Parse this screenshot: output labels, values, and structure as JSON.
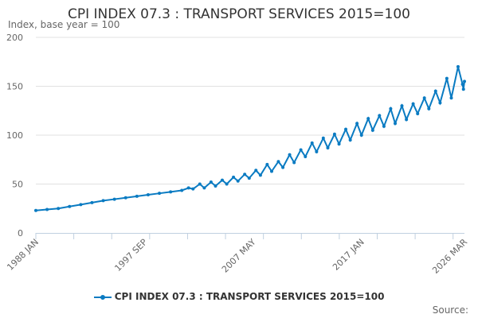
{
  "chart_data": {
    "type": "line",
    "title": "CPI INDEX 07.3 : TRANSPORT SERVICES 2015=100",
    "ylabel": "Index, base year = 100",
    "xlabel": "",
    "ylim": [
      0,
      200
    ],
    "yticks": [
      0,
      50,
      100,
      150,
      200
    ],
    "xrange": [
      1988.0,
      2026.17
    ],
    "xticks": [
      {
        "x": 1988.0,
        "label": "1988 JAN"
      },
      {
        "x": 1997.67,
        "label": "1997 SEP"
      },
      {
        "x": 2007.33,
        "label": "2007 MAY"
      },
      {
        "x": 2017.0,
        "label": "2017 JAN"
      },
      {
        "x": 2026.17,
        "label": "2026 MAR"
      }
    ],
    "grid": true,
    "legend_position": "bottom",
    "color": "#0a7bc2",
    "series": [
      {
        "name": "CPI INDEX 07.3 : TRANSPORT SERVICES 2015=100",
        "x": [
          1988,
          1989,
          1990,
          1991,
          1992,
          1993,
          1994,
          1995,
          1996,
          1997,
          1998,
          1999,
          2000,
          2001,
          2001.6,
          2002,
          2002.6,
          2003,
          2003.6,
          2004,
          2004.6,
          2005,
          2005.6,
          2006,
          2006.6,
          2007,
          2007.6,
          2008,
          2008.6,
          2009,
          2009.6,
          2010,
          2010.6,
          2011,
          2011.6,
          2012,
          2012.6,
          2013,
          2013.6,
          2014,
          2014.6,
          2015,
          2015.6,
          2016,
          2016.6,
          2017,
          2017.6,
          2018,
          2018.6,
          2019,
          2019.6,
          2020,
          2020.6,
          2021,
          2021.6,
          2022,
          2022.6,
          2023,
          2023.6,
          2024,
          2024.6,
          2025,
          2025.6,
          2026,
          2026.08,
          2026.17
        ],
        "values": [
          23,
          24,
          25,
          27,
          29,
          31,
          33,
          34.5,
          36,
          37.5,
          39,
          40.5,
          42,
          43.5,
          46,
          45,
          50,
          46,
          52,
          48,
          54,
          50,
          57,
          53,
          60,
          56,
          64,
          59,
          70,
          63,
          73,
          67,
          80,
          72,
          85,
          78,
          92,
          83,
          97,
          87,
          101,
          91,
          106,
          95,
          112,
          100,
          117,
          105,
          120,
          109,
          127,
          112,
          130,
          116,
          132,
          122,
          138,
          127,
          145,
          133,
          158,
          138,
          170,
          152,
          147,
          155
        ]
      }
    ]
  },
  "source_label": "Source:"
}
